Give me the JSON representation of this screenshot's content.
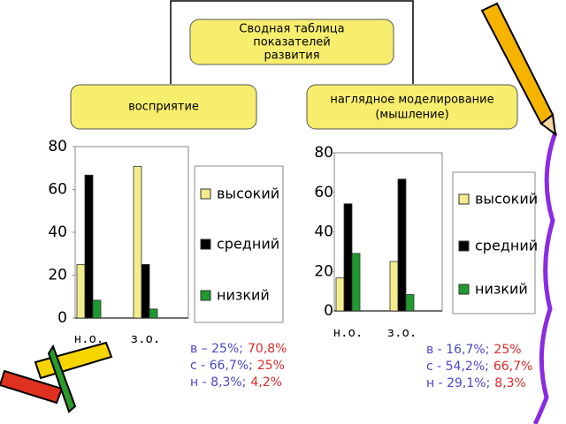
{
  "diagram": {
    "top": [
      "Сводная таблица",
      "показателей",
      "развития"
    ],
    "left": [
      "восприятие"
    ],
    "right": [
      "наглядное моделирование",
      "(мышление)"
    ]
  },
  "chart_data": [
    {
      "type": "bar",
      "categories": [
        "н.о.",
        "з.о."
      ],
      "series": [
        {
          "name": "высокий",
          "color": "#f2ec8c",
          "values": [
            25,
            70.8
          ]
        },
        {
          "name": "средний",
          "color": "#000000",
          "values": [
            66.7,
            25
          ]
        },
        {
          "name": "низкий",
          "color": "#1f9a2e",
          "values": [
            8.3,
            4.2
          ]
        }
      ],
      "ylim": [
        0,
        80
      ],
      "yticks": [
        0,
        20,
        40,
        60,
        80
      ],
      "legend": "right",
      "annotations": [
        [
          "в – 25%;",
          "70,8%"
        ],
        [
          "с - 66,7%;",
          "25%"
        ],
        [
          "н - 8,3%;",
          "4,2%"
        ]
      ]
    },
    {
      "type": "bar",
      "categories": [
        "н.о.",
        "з.о."
      ],
      "series": [
        {
          "name": "высокий",
          "color": "#f2ec8c",
          "values": [
            16.7,
            25
          ]
        },
        {
          "name": "средний",
          "color": "#000000",
          "values": [
            54.2,
            66.7
          ]
        },
        {
          "name": "низкий",
          "color": "#1f9a2e",
          "values": [
            29.1,
            8.3
          ]
        }
      ],
      "ylim": [
        0,
        80
      ],
      "yticks": [
        0,
        20,
        40,
        60,
        80
      ],
      "legend": "right",
      "annotations": [
        [
          "в - 16,7%;",
          "25%"
        ],
        [
          "с - 54,2%;",
          "66,7%"
        ],
        [
          "н - 29,1%;",
          "8,3%"
        ]
      ]
    }
  ]
}
